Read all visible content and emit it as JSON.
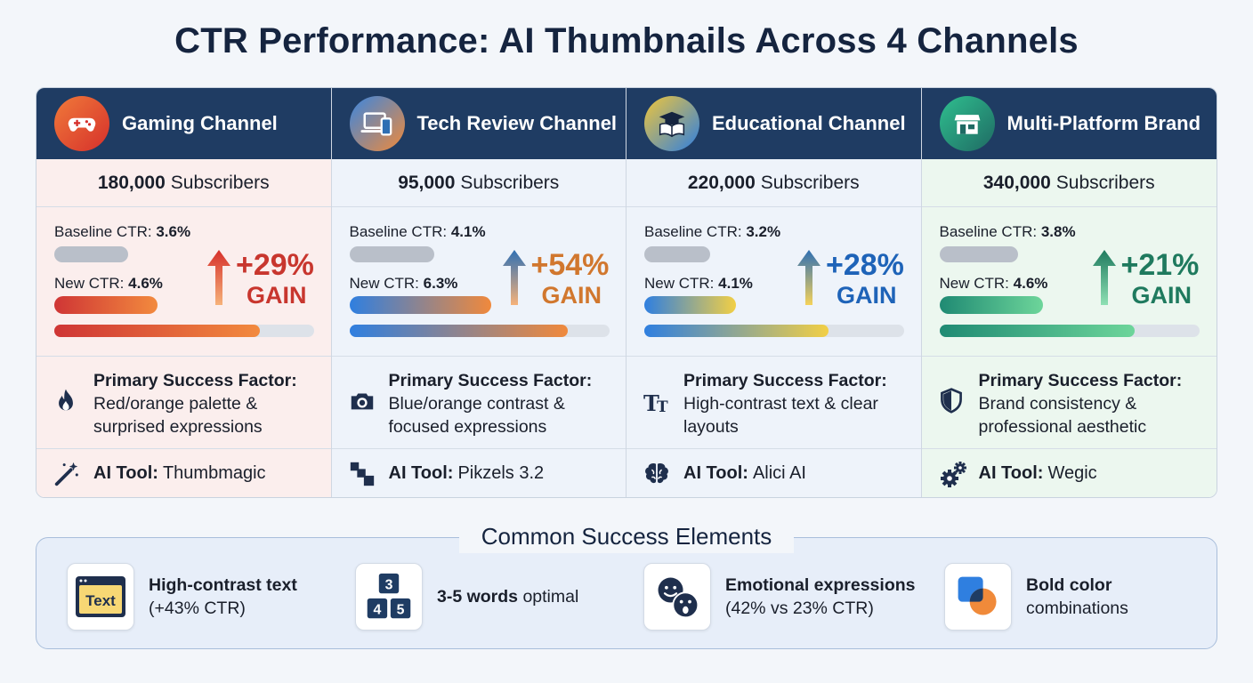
{
  "title": "CTR Performance: AI Thumbnails Across 4 Channels",
  "labels": {
    "subscribers": "Subscribers",
    "baseline": "Baseline CTR:",
    "new": "New CTR:",
    "gain": "GAIN",
    "factor": "Primary Success Factor:",
    "tool": "AI Tool:"
  },
  "chart_data": {
    "type": "bar",
    "categories": [
      "Gaming Channel",
      "Tech Review Channel",
      "Educational Channel",
      "Multi-Platform Brand"
    ],
    "series": [
      {
        "name": "Baseline CTR",
        "values": [
          3.6,
          4.1,
          3.2,
          3.8
        ]
      },
      {
        "name": "New CTR",
        "values": [
          4.6,
          6.3,
          4.1,
          4.6
        ]
      }
    ],
    "units": "%",
    "gain_percent": [
      29,
      54,
      28,
      21
    ],
    "subscribers": [
      180000,
      95000,
      220000,
      340000
    ]
  },
  "channels": [
    {
      "name": "Gaming Channel",
      "subscribers": "180,000",
      "baseline": "3.6%",
      "new": "4.6%",
      "gain": "+29%",
      "factor": "Red/orange palette & surprised expressions",
      "tool": "Thumbmagic",
      "head_icon": "gamepad-icon",
      "factor_icon": "flame-icon",
      "tool_icon": "magic-wand-icon",
      "accent": "#c8362e",
      "bg": "#fbeeed",
      "icon_grad": [
        "#f07a3a",
        "#d6302b"
      ],
      "bar_grad": [
        "#cf3535",
        "#f28a3e"
      ],
      "arrow_grad": [
        "#f6b27a",
        "#d6302b"
      ],
      "progress": 0.79
    },
    {
      "name": "Tech Review Channel",
      "subscribers": "95,000",
      "baseline": "4.1%",
      "new": "6.3%",
      "gain": "+54%",
      "factor": "Blue/orange contrast & focused expressions",
      "tool": "Pikzels 3.2",
      "head_icon": "devices-icon",
      "factor_icon": "camera-icon",
      "tool_icon": "pixel-blocks-icon",
      "accent": "#d1772e",
      "bg": "#eef3fa",
      "icon_grad": [
        "#3a86e0",
        "#f08a3a"
      ],
      "bar_grad": [
        "#2f7fe0",
        "#f0893c"
      ],
      "arrow_grad": [
        "#f6b27a",
        "#2f6fb3"
      ],
      "progress": 0.84
    },
    {
      "name": "Educational Channel",
      "subscribers": "220,000",
      "baseline": "3.2%",
      "new": "4.1%",
      "gain": "+28%",
      "factor": "High-contrast text & clear layouts",
      "tool": "Alici AI",
      "head_icon": "graduation-book-icon",
      "factor_icon": "text-size-icon",
      "tool_icon": "brain-icon",
      "accent": "#1e63b8",
      "bg": "#eef3fa",
      "icon_grad": [
        "#f0c63a",
        "#2f7fe0"
      ],
      "bar_grad": [
        "#2f7fe0",
        "#f2cf45"
      ],
      "arrow_grad": [
        "#f5d25a",
        "#2f6fb3"
      ],
      "progress": 0.71
    },
    {
      "name": "Multi-Platform Brand",
      "subscribers": "340,000",
      "baseline": "3.8%",
      "new": "4.6%",
      "gain": "+21%",
      "factor": "Brand consistency & professional aesthetic",
      "tool": "Wegic",
      "head_icon": "storefront-icon",
      "factor_icon": "shield-icon",
      "tool_icon": "gears-icon",
      "accent": "#1f7a5e",
      "bg": "#ecf7ef",
      "icon_grad": [
        "#2fbf8f",
        "#1f6a63"
      ],
      "bar_grad": [
        "#1f8a73",
        "#6dd59a"
      ],
      "arrow_grad": [
        "#8fe0b4",
        "#1f7a5e"
      ],
      "progress": 0.75
    }
  ],
  "common": {
    "title": "Common Success Elements",
    "items": [
      {
        "bold": "High-contrast text",
        "rest": "(+43% CTR)",
        "icon": "text-window-icon",
        "icon_text": "Text"
      },
      {
        "bold": "3-5 words",
        "rest": "optimal",
        "icon": "number-blocks-icon",
        "digits": [
          "3",
          "4",
          "5"
        ]
      },
      {
        "bold": "Emotional expressions",
        "rest": "(42% vs 23% CTR)",
        "icon": "faces-icon"
      },
      {
        "bold": "Bold color",
        "rest": "combinations",
        "icon": "color-squares-icon"
      }
    ]
  }
}
